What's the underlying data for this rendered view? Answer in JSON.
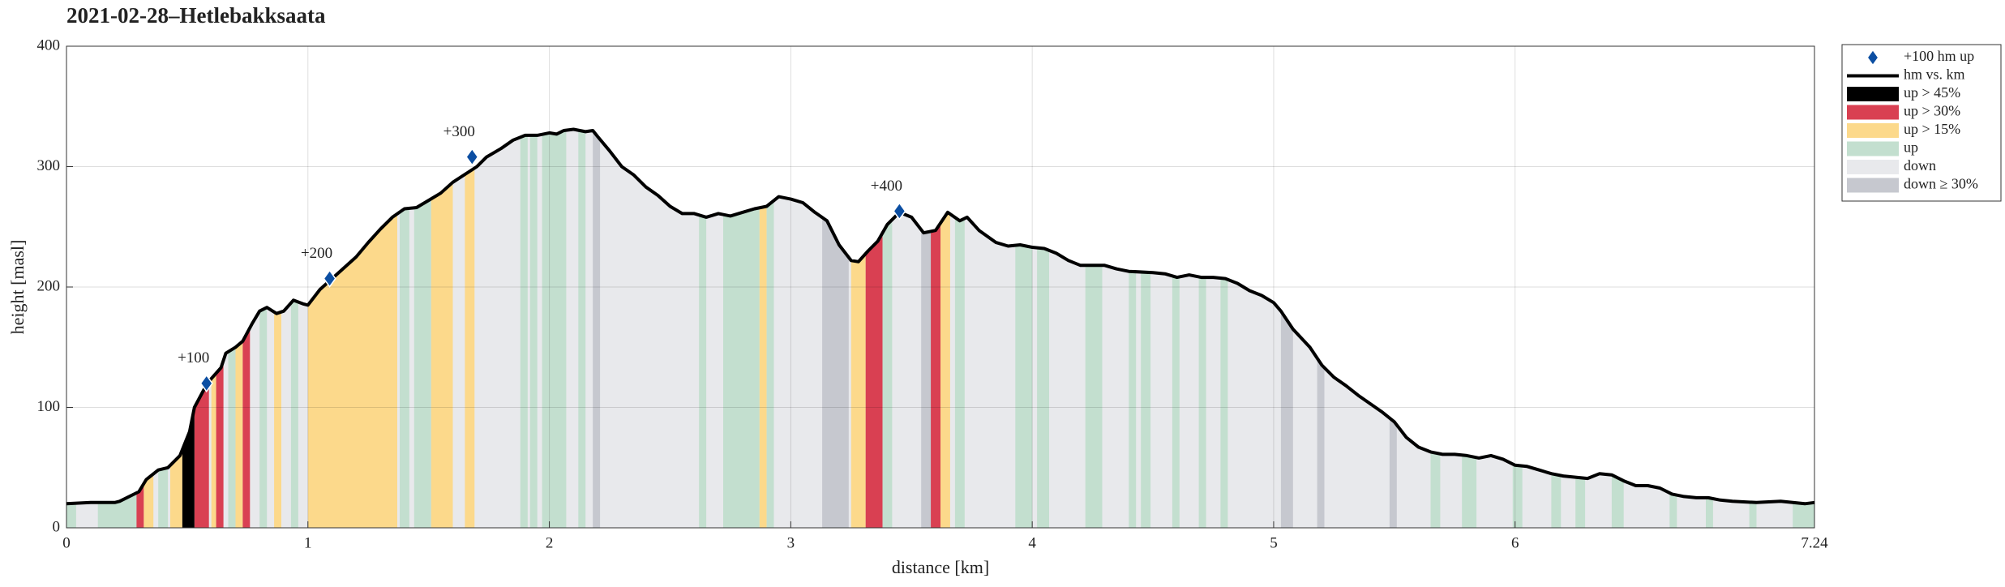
{
  "chart_data": {
    "type": "elevation-profile",
    "title": "2021-02-28–Hetlebakksaata",
    "xlabel": "distance [km]",
    "ylabel": "height [masl]",
    "xlim": [
      0,
      7.24
    ],
    "ylim": [
      0,
      400
    ],
    "xticks": [
      0,
      1,
      2,
      3,
      4,
      5,
      6,
      7.24
    ],
    "yticks": [
      0,
      100,
      200,
      300,
      400
    ],
    "grid": true,
    "legend": "outside-right-top",
    "markers": {
      "name": "+100 hm up",
      "color": "#0b4ea2",
      "x": [
        0.58,
        1.09,
        1.68,
        3.45
      ],
      "values": [
        120,
        207,
        308,
        263
      ],
      "labels": [
        "+100",
        "+200",
        "+300",
        "+400"
      ]
    },
    "profile": {
      "name": "hm vs. km",
      "color": "#000000",
      "x": [
        0,
        0.1,
        0.2,
        0.22,
        0.3,
        0.33,
        0.38,
        0.42,
        0.47,
        0.51,
        0.53,
        0.57,
        0.6,
        0.64,
        0.66,
        0.7,
        0.73,
        0.77,
        0.8,
        0.83,
        0.87,
        0.9,
        0.94,
        0.98,
        1.0,
        1.05,
        1.1,
        1.2,
        1.25,
        1.3,
        1.35,
        1.4,
        1.45,
        1.5,
        1.55,
        1.6,
        1.7,
        1.74,
        1.8,
        1.85,
        1.9,
        1.95,
        2.0,
        2.03,
        2.06,
        2.1,
        2.15,
        2.18,
        2.2,
        2.25,
        2.3,
        2.35,
        2.4,
        2.45,
        2.5,
        2.55,
        2.6,
        2.65,
        2.7,
        2.75,
        2.8,
        2.85,
        2.9,
        2.95,
        3.0,
        3.05,
        3.1,
        3.15,
        3.2,
        3.25,
        3.28,
        3.32,
        3.36,
        3.4,
        3.45,
        3.5,
        3.55,
        3.6,
        3.65,
        3.7,
        3.73,
        3.78,
        3.85,
        3.9,
        3.95,
        4.0,
        4.05,
        4.1,
        4.15,
        4.2,
        4.25,
        4.3,
        4.35,
        4.4,
        4.5,
        4.55,
        4.6,
        4.65,
        4.7,
        4.75,
        4.8,
        4.85,
        4.9,
        4.95,
        5.0,
        5.03,
        5.08,
        5.15,
        5.2,
        5.25,
        5.3,
        5.35,
        5.4,
        5.45,
        5.5,
        5.55,
        5.6,
        5.65,
        5.7,
        5.75,
        5.8,
        5.85,
        5.9,
        5.95,
        6.0,
        6.05,
        6.1,
        6.15,
        6.2,
        6.25,
        6.3,
        6.35,
        6.4,
        6.45,
        6.5,
        6.55,
        6.6,
        6.65,
        6.7,
        6.75,
        6.8,
        6.85,
        6.9,
        7.0,
        7.1,
        7.15,
        7.2,
        7.24
      ],
      "values": [
        20,
        21,
        21,
        22,
        30,
        40,
        48,
        50,
        60,
        80,
        100,
        115,
        124,
        133,
        145,
        150,
        155,
        170,
        180,
        183,
        178,
        180,
        189,
        186,
        185,
        198,
        207,
        225,
        237,
        248,
        258,
        265,
        266,
        272,
        278,
        287,
        300,
        308,
        315,
        322,
        326,
        326,
        328,
        327,
        330,
        331,
        329,
        330,
        325,
        313,
        300,
        293,
        283,
        276,
        267,
        261,
        261,
        258,
        261,
        259,
        262,
        265,
        267,
        275,
        273,
        270,
        262,
        255,
        235,
        222,
        221,
        230,
        238,
        252,
        262,
        258,
        245,
        247,
        262,
        255,
        258,
        247,
        237,
        234,
        235,
        233,
        232,
        228,
        222,
        218,
        218,
        218,
        215,
        213,
        212,
        211,
        208,
        210,
        208,
        208,
        207,
        203,
        197,
        193,
        187,
        180,
        165,
        150,
        135,
        125,
        118,
        110,
        103,
        96,
        88,
        75,
        67,
        63,
        61,
        61,
        60,
        58,
        60,
        57,
        52,
        51,
        48,
        45,
        43,
        42,
        41,
        45,
        44,
        39,
        35,
        35,
        33,
        28,
        26,
        25,
        25,
        23,
        22,
        21,
        22,
        21,
        20,
        21
      ]
    },
    "classes": [
      {
        "name": "up > 45%",
        "color": "#000000",
        "ranges": [
          [
            0.48,
            0.53
          ]
        ]
      },
      {
        "name": "up > 30%",
        "color": "#d94052",
        "ranges": [
          [
            0.29,
            0.32
          ],
          [
            0.53,
            0.59
          ],
          [
            0.62,
            0.65
          ],
          [
            0.73,
            0.76
          ],
          [
            3.31,
            3.38
          ],
          [
            3.58,
            3.62
          ]
        ]
      },
      {
        "name": "up > 15%",
        "color": "#fcd98b",
        "ranges": [
          [
            0.32,
            0.36
          ],
          [
            0.43,
            0.48
          ],
          [
            0.6,
            0.62
          ],
          [
            0.7,
            0.73
          ],
          [
            0.86,
            0.89
          ],
          [
            1.0,
            1.37
          ],
          [
            1.51,
            1.6
          ],
          [
            1.65,
            1.69
          ],
          [
            2.87,
            2.9
          ],
          [
            3.25,
            3.31
          ],
          [
            3.62,
            3.66
          ]
        ]
      },
      {
        "name": "up",
        "color": "#c3dfcf",
        "ranges": [
          [
            0,
            0.04
          ],
          [
            0.13,
            0.29
          ],
          [
            0.38,
            0.42
          ],
          [
            0.67,
            0.7
          ],
          [
            0.8,
            0.83
          ],
          [
            0.93,
            0.96
          ],
          [
            1.38,
            1.42
          ],
          [
            1.44,
            1.51
          ],
          [
            1.88,
            1.91
          ],
          [
            1.92,
            1.95
          ],
          [
            1.97,
            2.07
          ],
          [
            2.12,
            2.15
          ],
          [
            2.62,
            2.65
          ],
          [
            2.72,
            2.87
          ],
          [
            2.9,
            2.93
          ],
          [
            3.38,
            3.42
          ],
          [
            3.68,
            3.72
          ],
          [
            3.93,
            4.0
          ],
          [
            4.02,
            4.07
          ],
          [
            4.22,
            4.29
          ],
          [
            4.4,
            4.43
          ],
          [
            4.45,
            4.49
          ],
          [
            4.58,
            4.61
          ],
          [
            4.69,
            4.72
          ],
          [
            4.78,
            4.81
          ],
          [
            5.65,
            5.69
          ],
          [
            5.78,
            5.84
          ],
          [
            5.99,
            6.03
          ],
          [
            6.15,
            6.19
          ],
          [
            6.25,
            6.29
          ],
          [
            6.4,
            6.45
          ],
          [
            6.64,
            6.67
          ],
          [
            6.79,
            6.82
          ],
          [
            6.97,
            7.0
          ],
          [
            7.15,
            7.24
          ]
        ]
      },
      {
        "name": "down",
        "color": "#e8e9ec",
        "ranges": [
          [
            0,
            7.24
          ]
        ]
      },
      {
        "name": "down ≥ 30%",
        "color": "#c6c8cf",
        "ranges": [
          [
            2.18,
            2.21
          ],
          [
            3.13,
            3.24
          ],
          [
            3.54,
            3.59
          ],
          [
            5.03,
            5.08
          ],
          [
            5.18,
            5.21
          ],
          [
            5.48,
            5.51
          ]
        ]
      }
    ]
  }
}
